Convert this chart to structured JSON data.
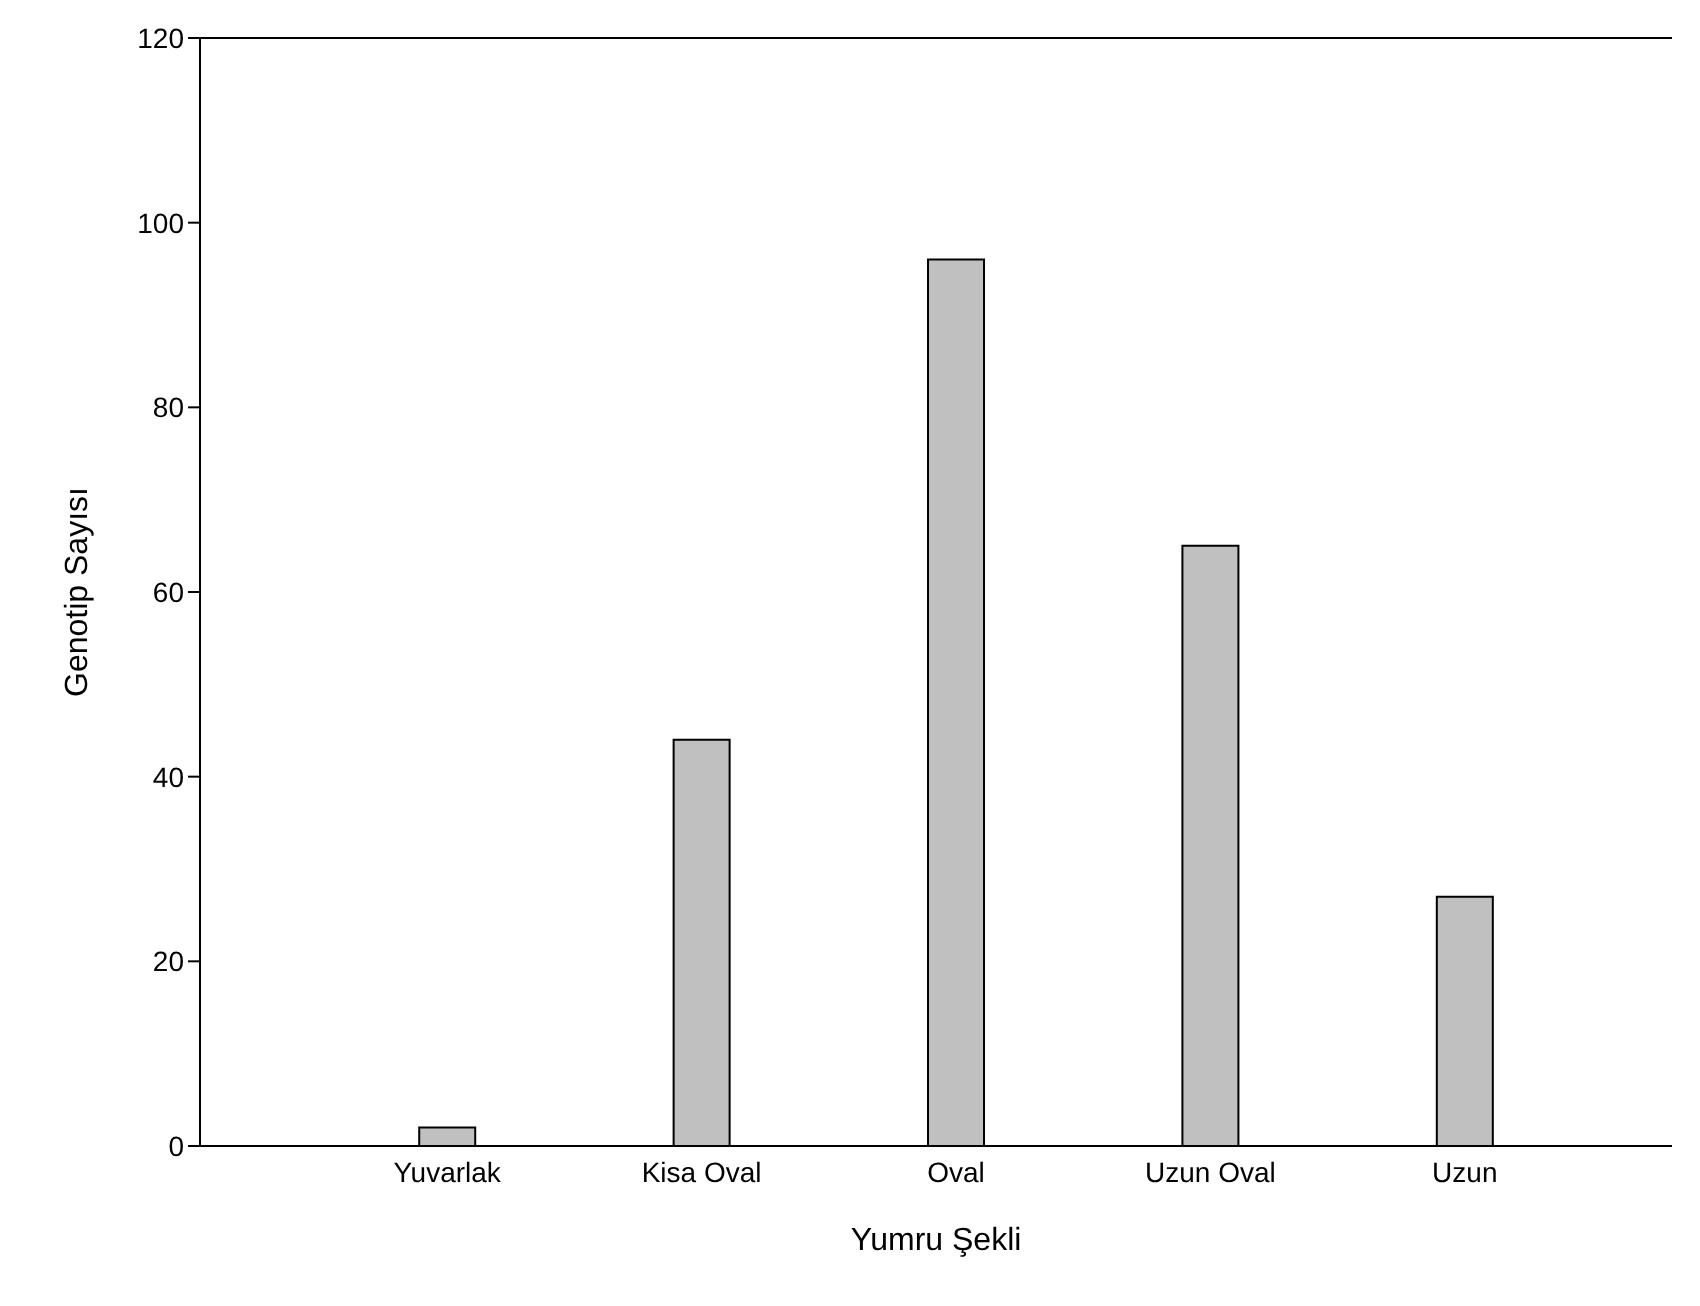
{
  "chart_data": {
    "type": "bar",
    "xlabel": "Yumru Şekli",
    "ylabel": "Genotip Sayısı",
    "categories": [
      "Yuvarlak",
      "Kisa Oval",
      "Oval",
      "Uzun Oval",
      "Uzun"
    ],
    "values": [
      2,
      44,
      96,
      65,
      27
    ],
    "color": "#c0c0c0",
    "ylim": [
      0,
      120
    ],
    "yticks": [
      0,
      20,
      40,
      60,
      80,
      100,
      120
    ],
    "grid": false,
    "legend": false
  }
}
